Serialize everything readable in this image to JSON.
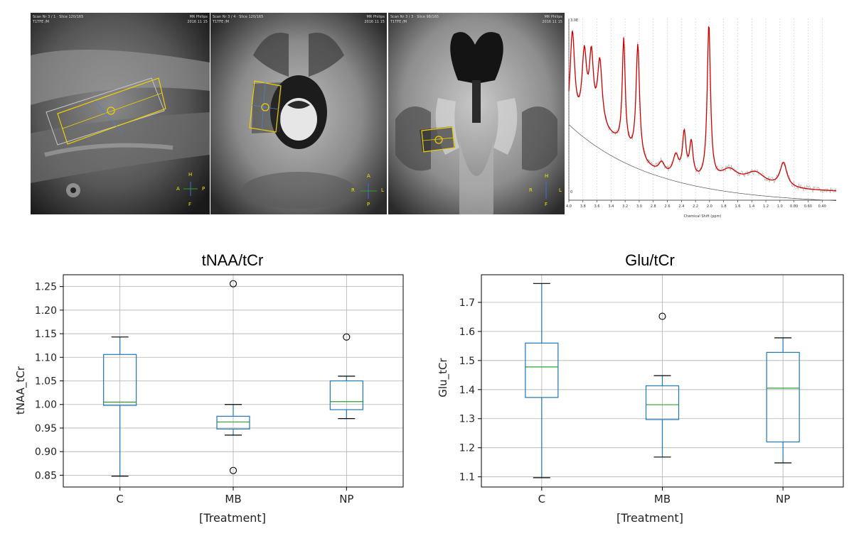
{
  "mri_panels": [
    {
      "id": "sagittal",
      "header_right": "MR Philips",
      "header_left": "Scan Nr 3 / 1 · Slice 120/165",
      "seq": "T1TFE /M",
      "date": "2016 11 15",
      "orient": [
        "H",
        "A",
        "P",
        "F"
      ]
    },
    {
      "id": "axial",
      "header_right": "MR Philips",
      "header_left": "Scan Nr 3 / 4 · Slice 120/165",
      "seq": "T1TFE /M",
      "date": "2016 11 15",
      "orient": [
        "A",
        "R",
        "L",
        "P"
      ]
    },
    {
      "id": "coronal",
      "header_right": "MR Philips",
      "header_left": "Scan Nr 3 / 3 · Slice 98/165",
      "seq": "T1TFE /M",
      "date": "2016 11 15",
      "orient": [
        "H",
        "R",
        "L",
        "F"
      ]
    }
  ],
  "spectrum": {
    "xlabel": "Chemical Shift (ppm)",
    "x_ticks": [
      "4.0",
      "3.8",
      "3.6",
      "3.4",
      "3.2",
      "3.0",
      "2.8",
      "2.6",
      "2.4",
      "2.2",
      "2.0",
      "1.8",
      "1.6",
      "1.4",
      "1.2",
      "1.0",
      "0.80",
      "0.60",
      "0.40"
    ],
    "xlim": [
      4.0,
      0.2
    ],
    "y_ticks": [
      "3.0E",
      "0"
    ],
    "colors": {
      "fit": "#cc0000",
      "baseline": "#555555",
      "grid": "#b0b0b0"
    }
  },
  "chart_data": [
    {
      "type": "box",
      "title": "tNAA/tCr",
      "xlabel": "[Treatment]",
      "ylabel": "tNAA_tCr",
      "categories": [
        "C",
        "MB",
        "NP"
      ],
      "ylim": [
        0.825,
        1.275
      ],
      "y_ticks": [
        0.85,
        0.9,
        0.95,
        1.0,
        1.05,
        1.1,
        1.15,
        1.2,
        1.25
      ],
      "y_tick_labels": [
        "0.85",
        "0.90",
        "0.95",
        "1.00",
        "1.05",
        "1.10",
        "1.15",
        "1.20",
        "1.25"
      ],
      "boxes": [
        {
          "category": "C",
          "whislo": 0.848,
          "q1": 0.998,
          "med": 1.005,
          "q3": 1.106,
          "whishi": 1.143,
          "fliers": []
        },
        {
          "category": "MB",
          "whislo": 0.935,
          "q1": 0.948,
          "med": 0.963,
          "q3": 0.975,
          "whishi": 1.0,
          "fliers": [
            1.256,
            0.86
          ]
        },
        {
          "category": "NP",
          "whislo": 0.97,
          "q1": 0.989,
          "med": 1.006,
          "q3": 1.05,
          "whishi": 1.06,
          "fliers": [
            1.143
          ]
        }
      ],
      "colors": {
        "box": "#1f77b4",
        "median": "#2ca02c",
        "whisker": "#000000",
        "grid": "#b0b0b0"
      }
    },
    {
      "type": "box",
      "title": "Glu/tCr",
      "xlabel": "[Treatment]",
      "ylabel": "Glu_tCr",
      "categories": [
        "C",
        "MB",
        "NP"
      ],
      "ylim": [
        1.065,
        1.795
      ],
      "y_ticks": [
        1.1,
        1.2,
        1.3,
        1.4,
        1.5,
        1.6,
        1.7
      ],
      "y_tick_labels": [
        "1.1",
        "1.2",
        "1.3",
        "1.4",
        "1.5",
        "1.6",
        "1.7"
      ],
      "boxes": [
        {
          "category": "C",
          "whislo": 1.097,
          "q1": 1.373,
          "med": 1.478,
          "q3": 1.56,
          "whishi": 1.765,
          "fliers": []
        },
        {
          "category": "MB",
          "whislo": 1.168,
          "q1": 1.297,
          "med": 1.348,
          "q3": 1.413,
          "whishi": 1.448,
          "fliers": [
            1.652
          ]
        },
        {
          "category": "NP",
          "whislo": 1.148,
          "q1": 1.22,
          "med": 1.405,
          "q3": 1.528,
          "whishi": 1.578,
          "fliers": []
        }
      ],
      "colors": {
        "box": "#1f77b4",
        "median": "#2ca02c",
        "whisker": "#000000",
        "grid": "#b0b0b0"
      }
    }
  ]
}
